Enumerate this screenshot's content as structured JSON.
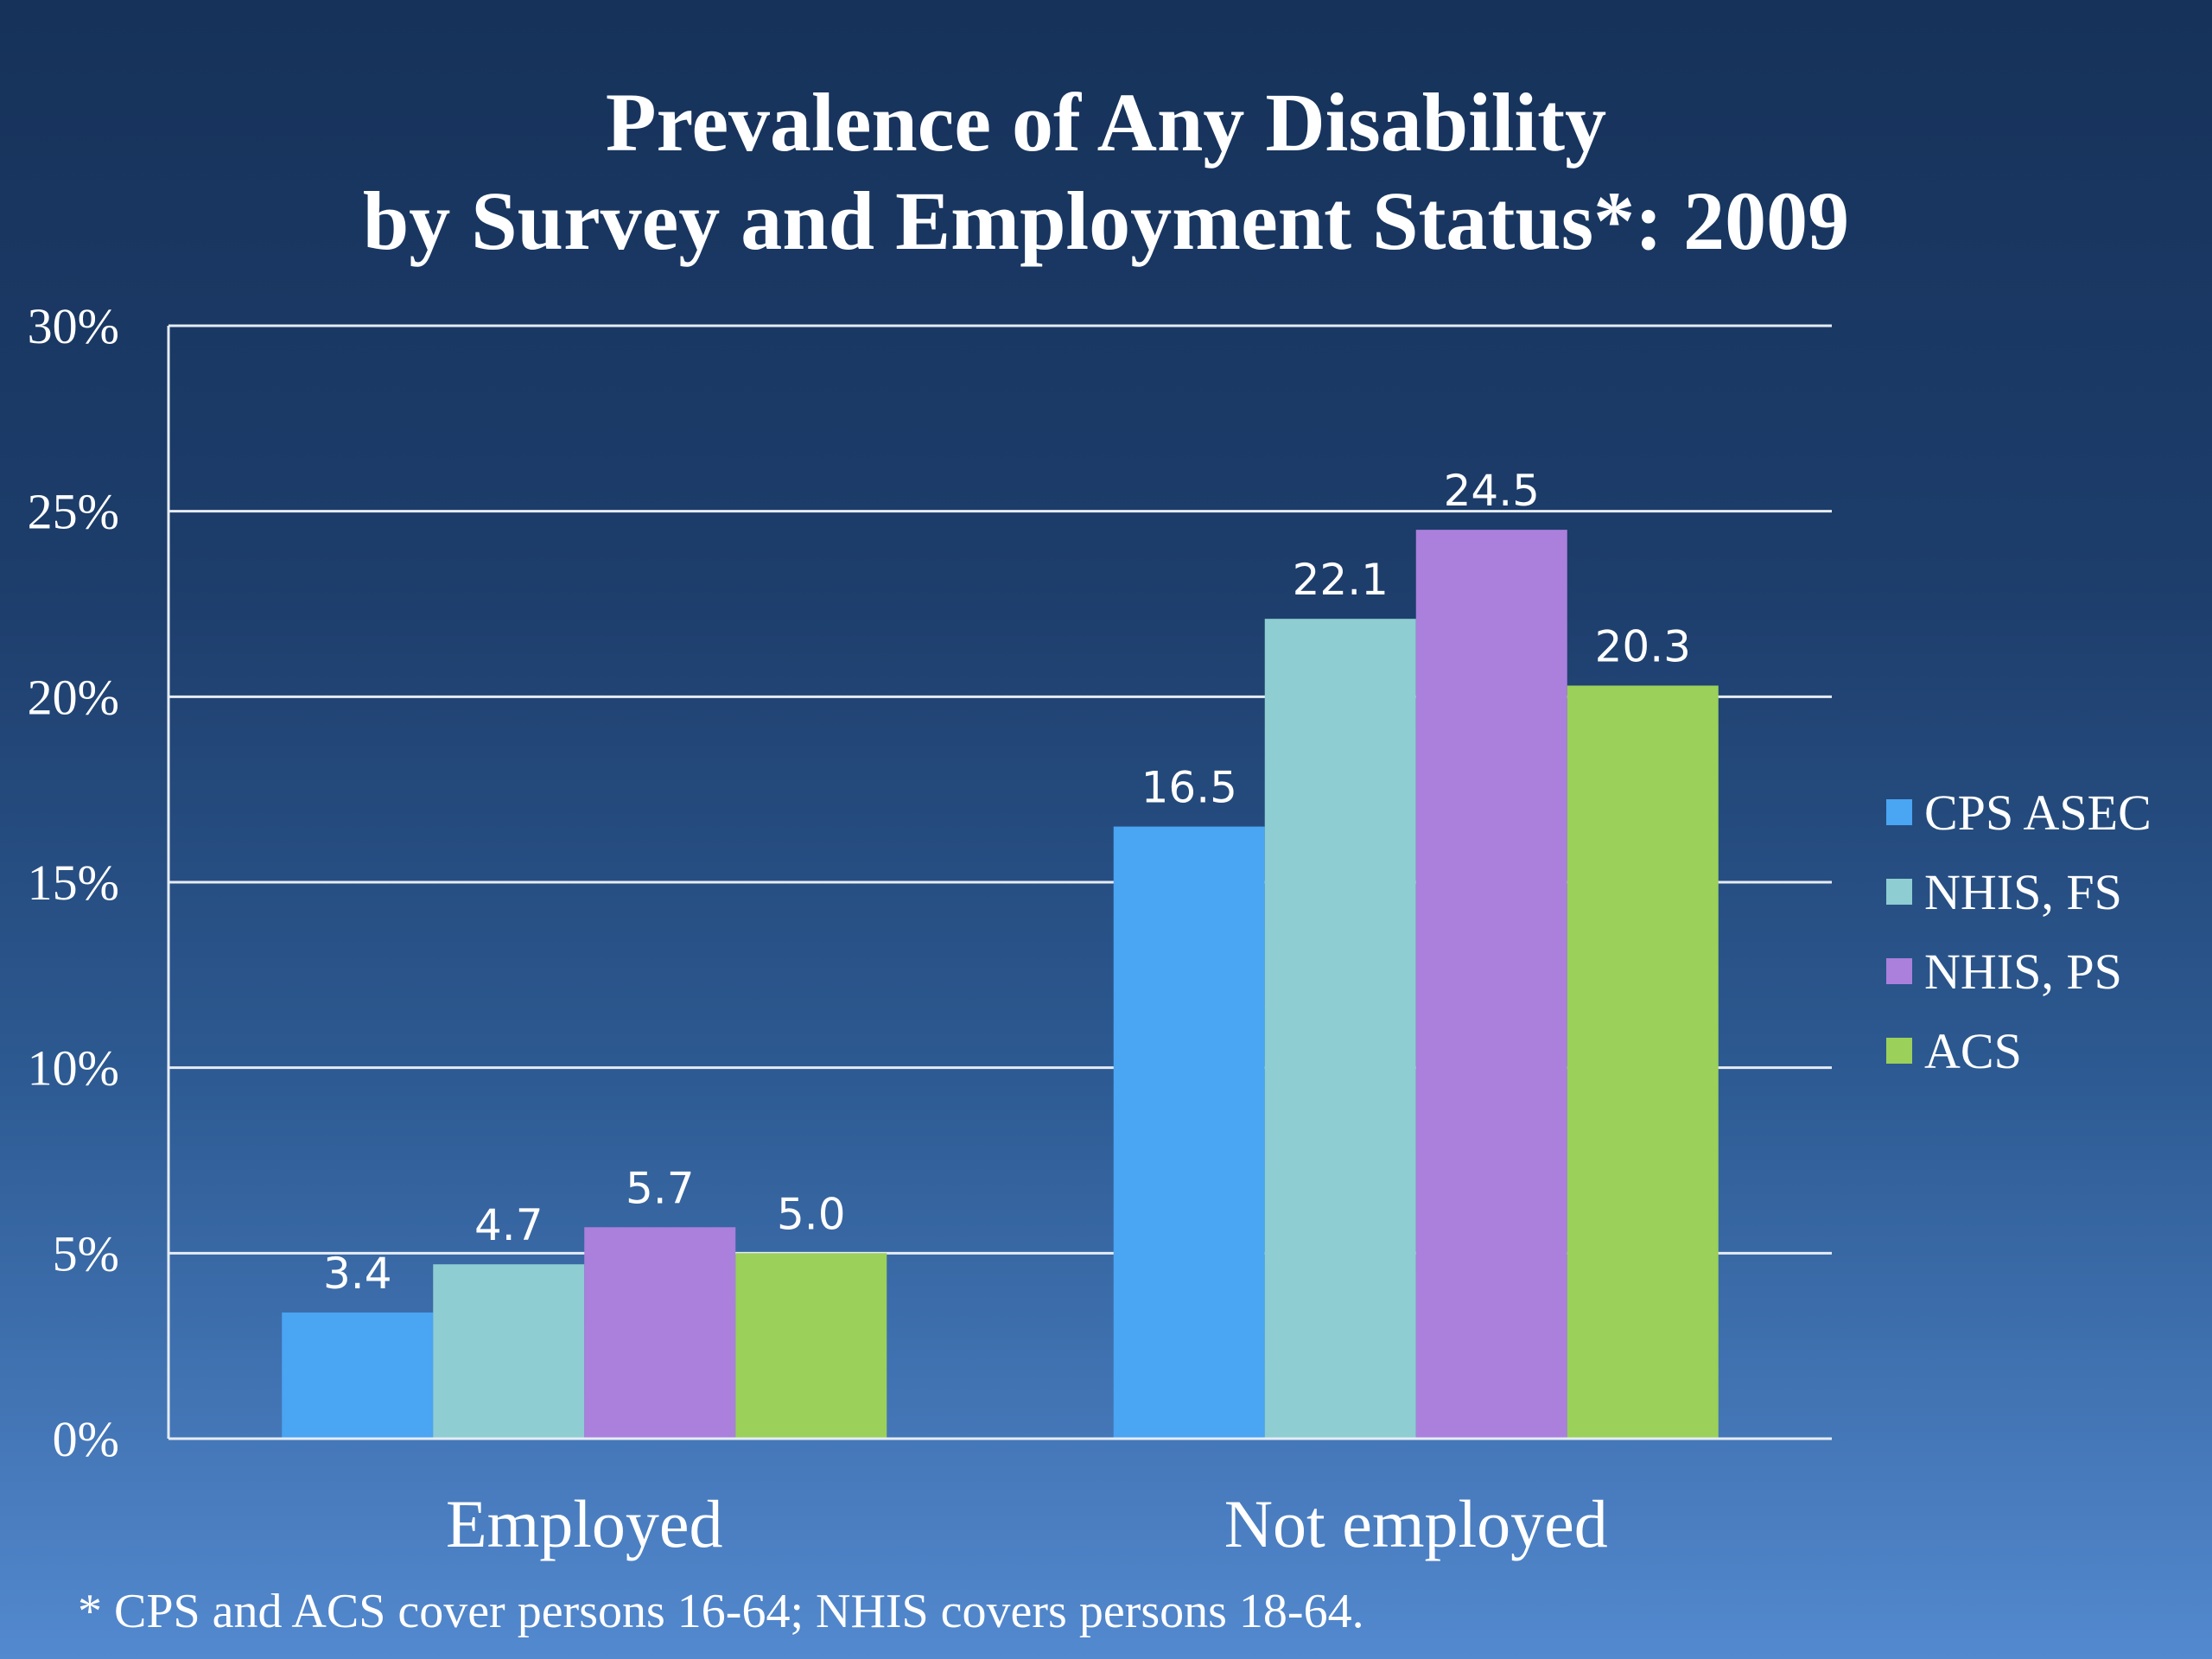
{
  "chart_data": {
    "type": "bar",
    "title_lines": [
      "Prevalence of Any Disability",
      "by Survey and Employment Status*: 2009"
    ],
    "categories": [
      "Employed",
      "Not employed"
    ],
    "series": [
      {
        "name": "CPS ASEC",
        "values": [
          3.4,
          16.5
        ],
        "labels": [
          "3.4",
          "16.5"
        ],
        "color": "#4aa5f3"
      },
      {
        "name": "NHIS, FS",
        "values": [
          4.7,
          22.1
        ],
        "labels": [
          "4.7",
          "22.1"
        ],
        "color": "#8ecdd1"
      },
      {
        "name": "NHIS, PS",
        "values": [
          5.7,
          24.5
        ],
        "labels": [
          "5.7",
          "24.5"
        ],
        "color": "#aa80dc"
      },
      {
        "name": "ACS",
        "values": [
          5.0,
          20.3
        ],
        "labels": [
          "5.0",
          "20.3"
        ],
        "color": "#9bd05a"
      }
    ],
    "yticks": [
      0,
      5,
      10,
      15,
      20,
      25,
      30
    ],
    "ytick_labels": [
      "0%",
      "5%",
      "10%",
      "15%",
      "20%",
      "25%",
      "30%"
    ],
    "ylim": [
      0,
      30
    ],
    "grid": true,
    "legend_position": "right",
    "footnote": "* CPS and ACS cover persons 16-64; NHIS covers persons 18-64."
  }
}
